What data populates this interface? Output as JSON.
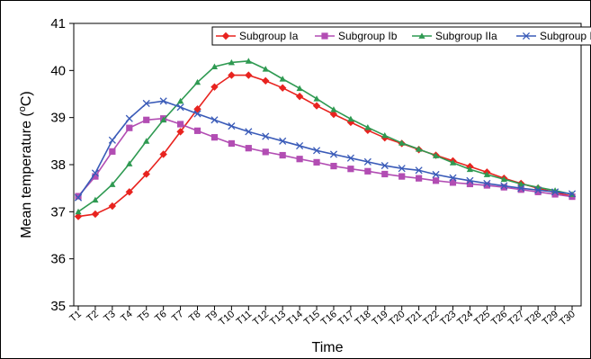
{
  "chart_data": {
    "type": "line",
    "xlabel": "Time",
    "ylabel": "Mean temperature (°C)",
    "ylabel_parts": [
      "Mean temperature (",
      "o",
      "C)"
    ],
    "ylim": [
      35,
      41
    ],
    "yticks": [
      35,
      36,
      37,
      38,
      39,
      40,
      41
    ],
    "categories": [
      "T1",
      "T2",
      "T3",
      "T4",
      "T5",
      "T6",
      "T7",
      "T8",
      "T9",
      "T10",
      "T11",
      "T12",
      "T13",
      "T14",
      "T15",
      "T16",
      "T17",
      "T18",
      "T19",
      "T20",
      "T21",
      "T22",
      "T23",
      "T24",
      "T25",
      "T26",
      "T27",
      "T28",
      "T29",
      "T30"
    ],
    "grid": false,
    "legend_position": "top-right",
    "series": [
      {
        "name": "Subgroup Ia",
        "color": "#e8231f",
        "marker": "diamond",
        "values": [
          36.9,
          36.95,
          37.12,
          37.42,
          37.8,
          38.22,
          38.7,
          39.18,
          39.65,
          39.9,
          39.9,
          39.78,
          39.63,
          39.45,
          39.25,
          39.07,
          38.9,
          38.73,
          38.57,
          38.45,
          38.32,
          38.2,
          38.08,
          37.96,
          37.84,
          37.71,
          37.6,
          37.5,
          37.41,
          37.33
        ]
      },
      {
        "name": "Subgroup Ib",
        "color": "#b24db3",
        "marker": "square",
        "values": [
          37.33,
          37.75,
          38.28,
          38.78,
          38.95,
          38.98,
          38.86,
          38.72,
          38.58,
          38.45,
          38.35,
          38.27,
          38.2,
          38.12,
          38.05,
          37.97,
          37.91,
          37.86,
          37.8,
          37.75,
          37.71,
          37.66,
          37.62,
          37.59,
          37.56,
          37.52,
          37.47,
          37.42,
          37.37,
          37.32
        ]
      },
      {
        "name": "Subgroup IIa",
        "color": "#2f9a52",
        "marker": "triangle",
        "values": [
          37.0,
          37.25,
          37.58,
          38.02,
          38.5,
          38.95,
          39.35,
          39.75,
          40.08,
          40.17,
          40.2,
          40.03,
          39.82,
          39.62,
          39.4,
          39.17,
          38.97,
          38.79,
          38.62,
          38.46,
          38.33,
          38.19,
          38.04,
          37.9,
          37.79,
          37.69,
          37.59,
          37.52,
          37.45,
          37.37
        ]
      },
      {
        "name": "Subgroup IIb",
        "color": "#3a5bb8",
        "marker": "x",
        "values": [
          37.3,
          37.82,
          38.52,
          38.98,
          39.3,
          39.35,
          39.22,
          39.08,
          38.95,
          38.82,
          38.7,
          38.6,
          38.5,
          38.4,
          38.3,
          38.22,
          38.14,
          38.06,
          37.98,
          37.92,
          37.88,
          37.79,
          37.72,
          37.66,
          37.6,
          37.55,
          37.5,
          37.46,
          37.42,
          37.38
        ]
      }
    ]
  }
}
